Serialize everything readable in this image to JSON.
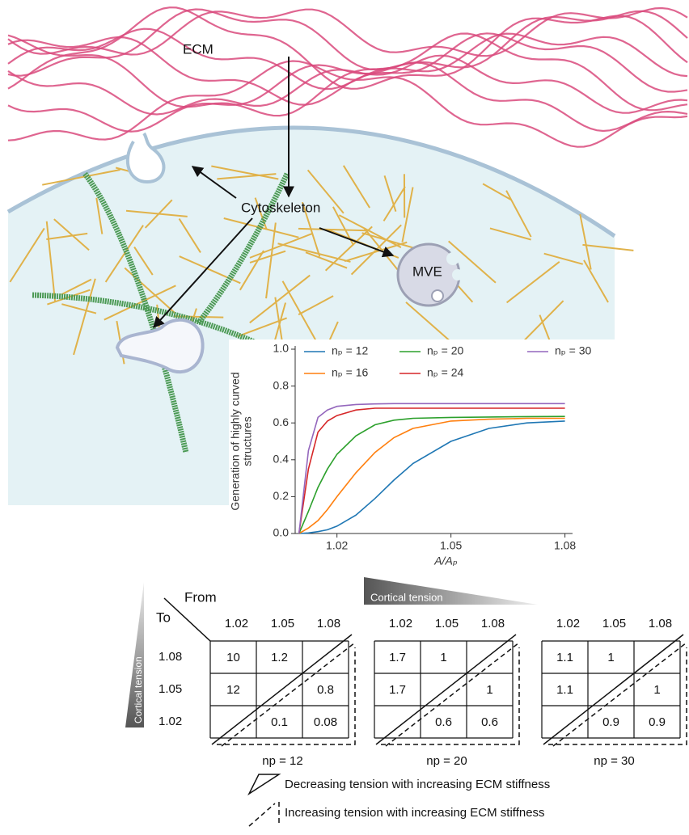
{
  "illustration": {
    "ecm": "ECM",
    "cytoskeleton": "Cytoskeleton",
    "mve": "MVE"
  },
  "chart_data": {
    "type": "line",
    "xlabel": "A/Aₚ",
    "ylabel": [
      "Generation of highly curved",
      "structures"
    ],
    "x": [
      1.01,
      1.0125,
      1.015,
      1.0175,
      1.02,
      1.025,
      1.03,
      1.035,
      1.04,
      1.05,
      1.06,
      1.07,
      1.08
    ],
    "series": [
      {
        "name": "nₚ = 12",
        "color": "#1f77b4",
        "values": [
          0,
          0.003,
          0.01,
          0.02,
          0.04,
          0.1,
          0.19,
          0.29,
          0.38,
          0.5,
          0.57,
          0.6,
          0.61
        ]
      },
      {
        "name": "nₚ = 16",
        "color": "#ff7f0e",
        "values": [
          0,
          0.03,
          0.07,
          0.13,
          0.2,
          0.33,
          0.44,
          0.52,
          0.57,
          0.61,
          0.62,
          0.625,
          0.625
        ]
      },
      {
        "name": "nₚ = 20",
        "color": "#2ca02c",
        "values": [
          0,
          0.12,
          0.25,
          0.35,
          0.43,
          0.53,
          0.59,
          0.615,
          0.625,
          0.63,
          0.632,
          0.634,
          0.635
        ]
      },
      {
        "name": "nₚ = 24",
        "color": "#d62728",
        "values": [
          0,
          0.35,
          0.55,
          0.61,
          0.64,
          0.67,
          0.68,
          0.68,
          0.68,
          0.68,
          0.68,
          0.68,
          0.68
        ]
      },
      {
        "name": "nₚ = 30",
        "color": "#9467bd",
        "values": [
          0,
          0.45,
          0.63,
          0.67,
          0.69,
          0.7,
          0.703,
          0.705,
          0.705,
          0.705,
          0.705,
          0.705,
          0.705
        ]
      }
    ],
    "xlim": [
      1.009,
      1.082
    ],
    "xticks": [
      1.02,
      1.05,
      1.08
    ],
    "ylim": [
      0,
      1
    ],
    "yticks": [
      {
        "value": 0,
        "label": "0.0"
      },
      0.2,
      0.4,
      0.6,
      0.8,
      {
        "value": 1,
        "label": "1.0"
      }
    ]
  },
  "tables": {
    "from": "From",
    "to": "To",
    "cortical_tension_h": "Cortical tension",
    "cortical_tension_v": "Cortical tension",
    "row_labels": [
      "1.08",
      "1.05",
      "1.02"
    ],
    "items": [
      {
        "label": "np = 12",
        "col_labels": [
          "1.02",
          "1.05",
          "1.08"
        ],
        "cells": [
          [
            "10",
            "1.2",
            null
          ],
          [
            "12",
            null,
            "0.8"
          ],
          [
            null,
            "0.1",
            "0.08"
          ]
        ]
      },
      {
        "label": "np = 20",
        "col_labels": [
          "1.02",
          "1.05",
          "1.08"
        ],
        "cells": [
          [
            "1.7",
            "1",
            null
          ],
          [
            "1.7",
            null,
            "1"
          ],
          [
            null,
            "0.6",
            "0.6"
          ]
        ]
      },
      {
        "label": "np = 30",
        "col_labels": [
          "1.02",
          "1.05",
          "1.08"
        ],
        "cells": [
          [
            "1.1",
            "1",
            null
          ],
          [
            "1.1",
            null,
            "1"
          ],
          [
            null,
            "0.9",
            "0.9"
          ]
        ]
      }
    ]
  },
  "legend": {
    "solid": "Decreasing tension with increasing ECM stiffness",
    "dashed": "Increasing tension with increasing ECM stiffness"
  }
}
